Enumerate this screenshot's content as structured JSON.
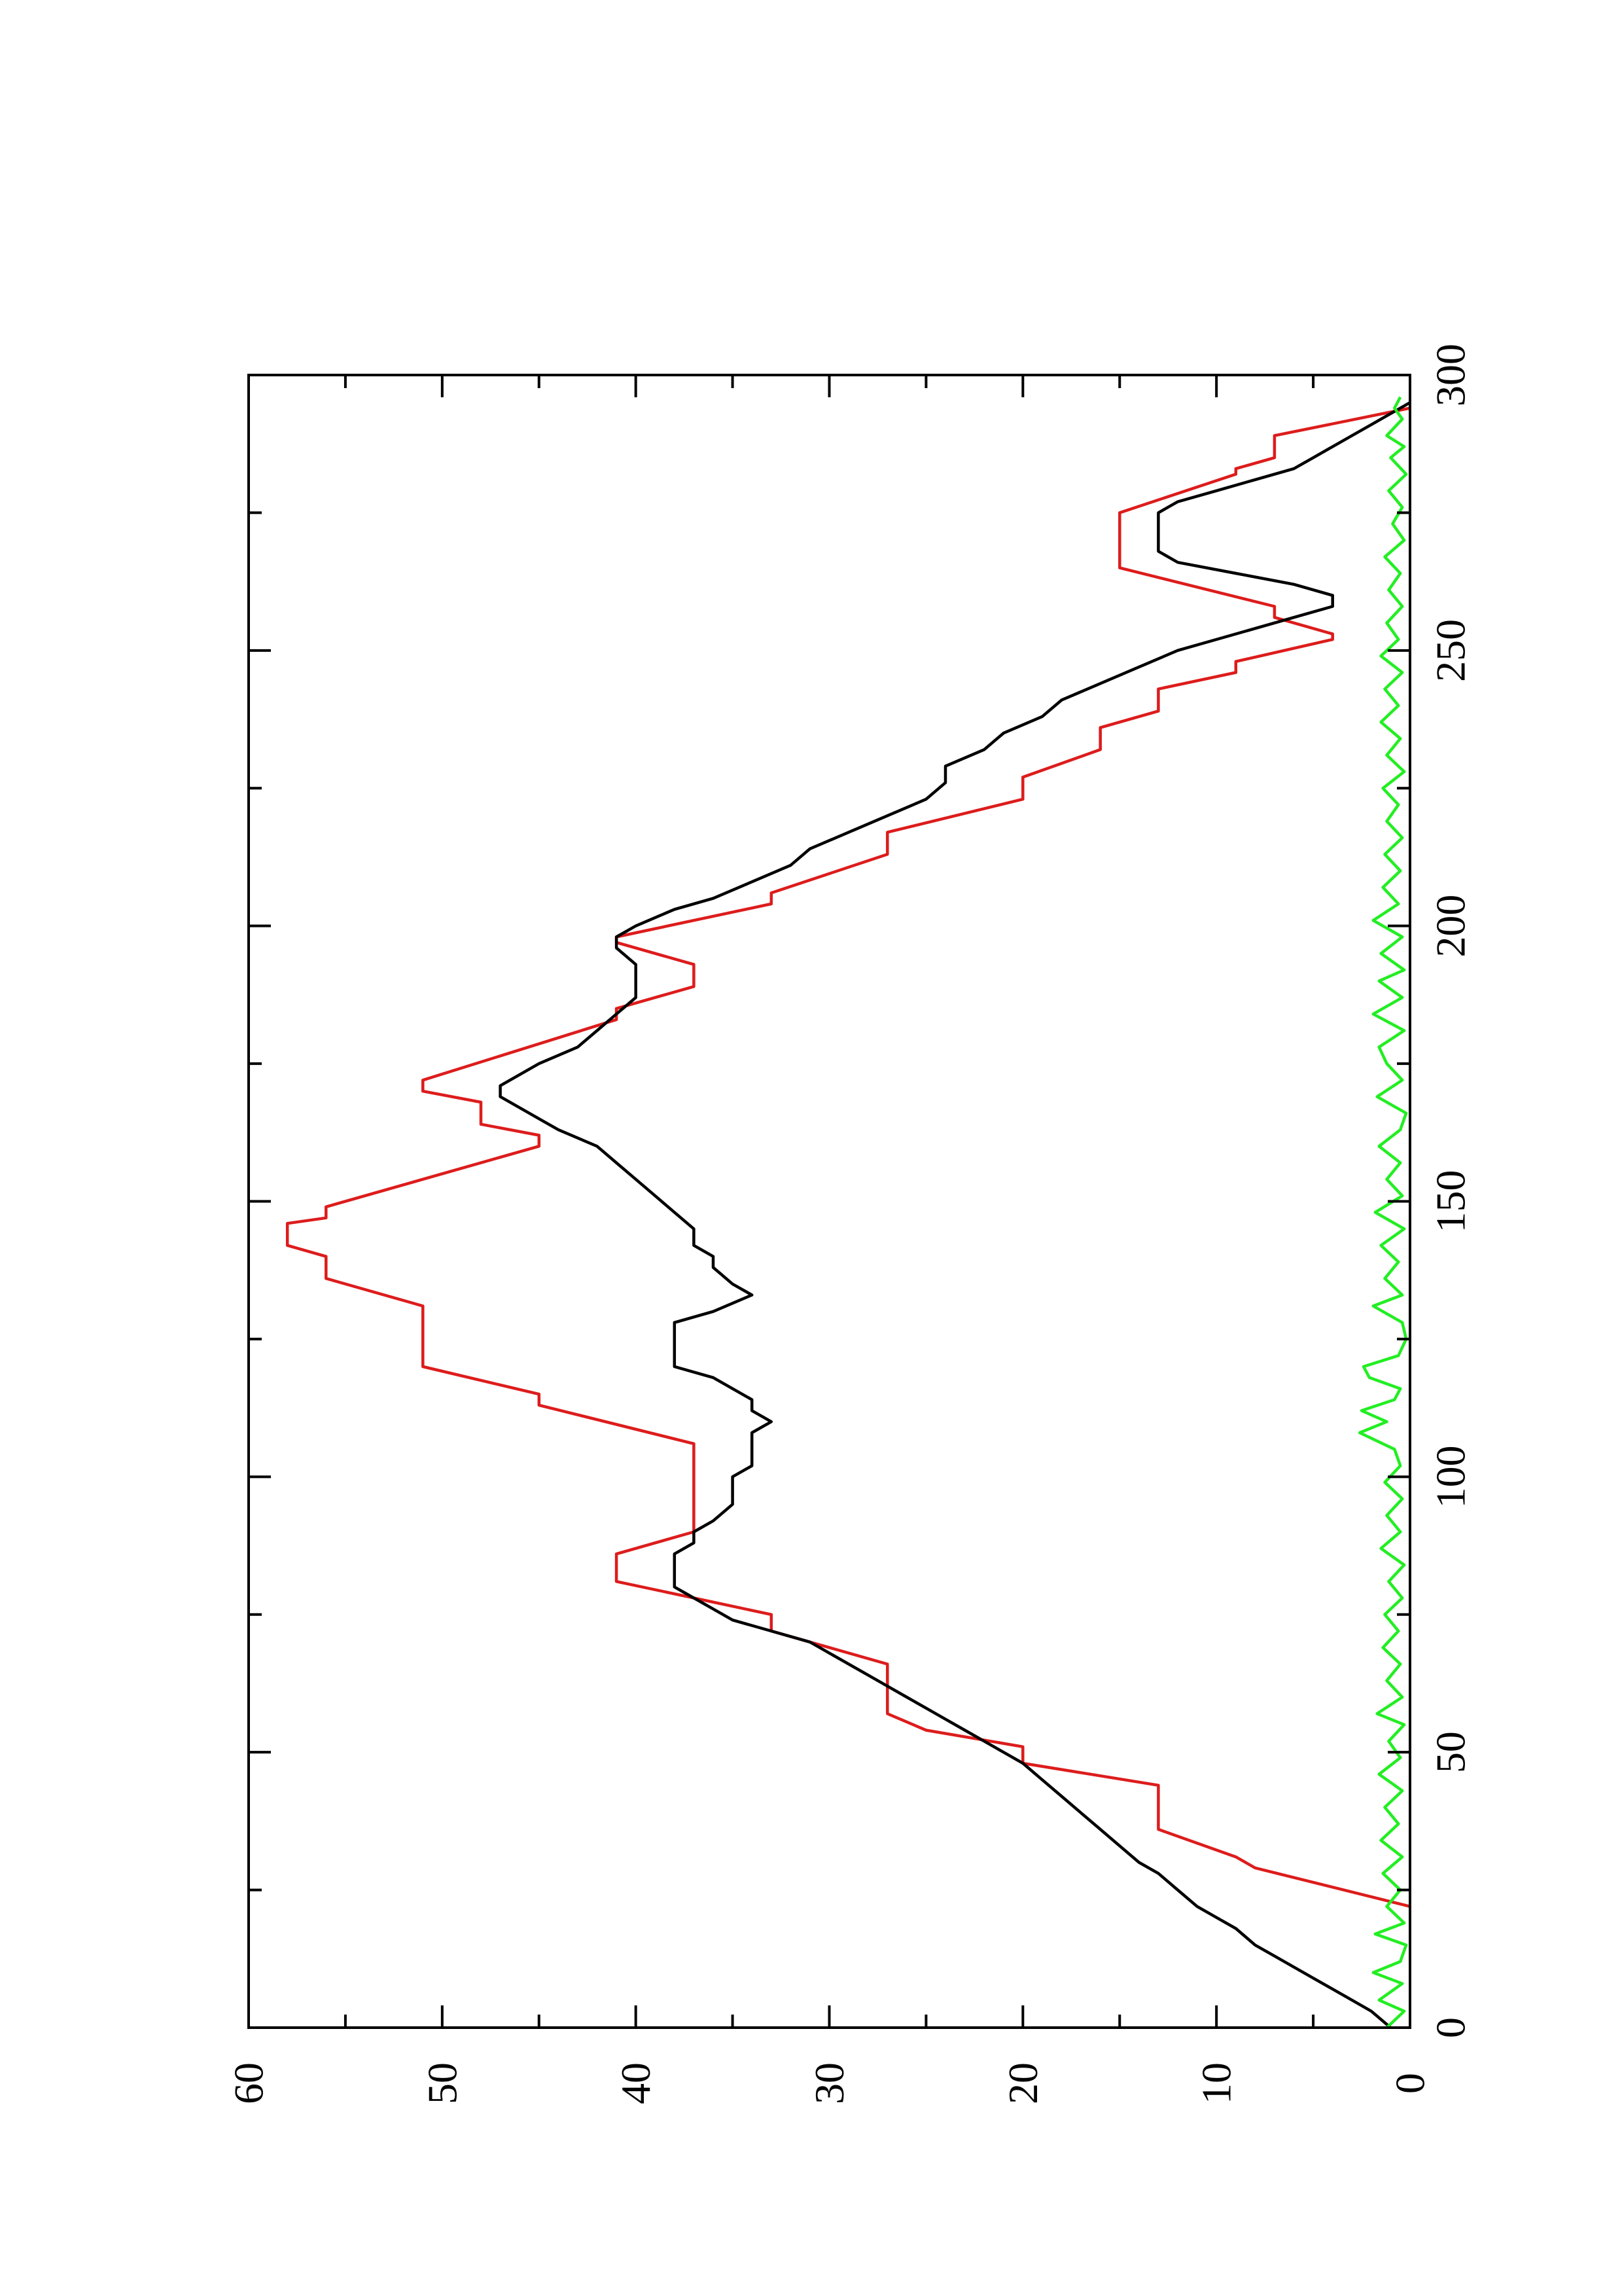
{
  "chart_data": {
    "type": "line",
    "title": "",
    "xlabel": "",
    "ylabel": "",
    "orientation": "rotated-90-counterclockwise",
    "grid": false,
    "legend": "none",
    "xlim": [
      0,
      300
    ],
    "ylim": [
      0,
      60
    ],
    "x_ticks": [
      "0",
      "50",
      "100",
      "150",
      "200",
      "250",
      "300"
    ],
    "y_ticks": [
      "0",
      "10",
      "20",
      "30",
      "40",
      "50",
      "60"
    ],
    "x_minor_ticks": [
      25,
      75,
      125,
      175,
      225,
      275
    ],
    "y_minor_ticks": [
      5,
      15,
      25,
      35,
      45,
      55
    ],
    "series": [
      {
        "color": "#dd1c1c",
        "style": "step",
        "points": [
          [
            22,
            0
          ],
          [
            29,
            8
          ],
          [
            31,
            9
          ],
          [
            36,
            13
          ],
          [
            44,
            13
          ],
          [
            48,
            20
          ],
          [
            51,
            20
          ],
          [
            54,
            25
          ],
          [
            57,
            27
          ],
          [
            66,
            27
          ],
          [
            72,
            33
          ],
          [
            75,
            33
          ],
          [
            78,
            37
          ],
          [
            81,
            41
          ],
          [
            86,
            41
          ],
          [
            90,
            37
          ],
          [
            106,
            37
          ],
          [
            113,
            45
          ],
          [
            115,
            45
          ],
          [
            120,
            51
          ],
          [
            131,
            51
          ],
          [
            136,
            56
          ],
          [
            140,
            56
          ],
          [
            142,
            58
          ],
          [
            146,
            58
          ],
          [
            147,
            56
          ],
          [
            149,
            56
          ],
          [
            160,
            45
          ],
          [
            162,
            45
          ],
          [
            164,
            48
          ],
          [
            168,
            48
          ],
          [
            170,
            51
          ],
          [
            172,
            51
          ],
          [
            183,
            41
          ],
          [
            185,
            41
          ],
          [
            189,
            37
          ],
          [
            193,
            37
          ],
          [
            197,
            41
          ],
          [
            198,
            41
          ],
          [
            204,
            33
          ],
          [
            206,
            33
          ],
          [
            213,
            27
          ],
          [
            217,
            27
          ],
          [
            223,
            20
          ],
          [
            227,
            20
          ],
          [
            232,
            16
          ],
          [
            236,
            16
          ],
          [
            239,
            13
          ],
          [
            243,
            13
          ],
          [
            246,
            9
          ],
          [
            248,
            9
          ],
          [
            252,
            4
          ],
          [
            253,
            4
          ],
          [
            256,
            7
          ],
          [
            258,
            7
          ],
          [
            265,
            15
          ],
          [
            275,
            15
          ],
          [
            282,
            9
          ],
          [
            283,
            9
          ],
          [
            285,
            7
          ],
          [
            289,
            7
          ],
          [
            294,
            0
          ]
        ]
      },
      {
        "color": "#000000",
        "style": "line",
        "points": [
          [
            0,
            1
          ],
          [
            3,
            2
          ],
          [
            5,
            3
          ],
          [
            7,
            4
          ],
          [
            9,
            5
          ],
          [
            11,
            6
          ],
          [
            13,
            7
          ],
          [
            15,
            8
          ],
          [
            18,
            9
          ],
          [
            20,
            10
          ],
          [
            22,
            11
          ],
          [
            25,
            12
          ],
          [
            28,
            13
          ],
          [
            30,
            14
          ],
          [
            33,
            15
          ],
          [
            36,
            16
          ],
          [
            39,
            17
          ],
          [
            42,
            18
          ],
          [
            45,
            19
          ],
          [
            48,
            20
          ],
          [
            50,
            21
          ],
          [
            52,
            22
          ],
          [
            54,
            23
          ],
          [
            56,
            24
          ],
          [
            58,
            25
          ],
          [
            60,
            26
          ],
          [
            62,
            27
          ],
          [
            64,
            28
          ],
          [
            66,
            29
          ],
          [
            68,
            30
          ],
          [
            70,
            31
          ],
          [
            72,
            33
          ],
          [
            74,
            35
          ],
          [
            76,
            36
          ],
          [
            78,
            37
          ],
          [
            80,
            38
          ],
          [
            82,
            38
          ],
          [
            84,
            38
          ],
          [
            86,
            38
          ],
          [
            88,
            37
          ],
          [
            90,
            37
          ],
          [
            92,
            36
          ],
          [
            95,
            35
          ],
          [
            98,
            35
          ],
          [
            100,
            35
          ],
          [
            102,
            34
          ],
          [
            105,
            34
          ],
          [
            108,
            34
          ],
          [
            110,
            33
          ],
          [
            112,
            34
          ],
          [
            114,
            34
          ],
          [
            116,
            35
          ],
          [
            118,
            36
          ],
          [
            120,
            38
          ],
          [
            124,
            38
          ],
          [
            128,
            38
          ],
          [
            130,
            36
          ],
          [
            133,
            34
          ],
          [
            135,
            35
          ],
          [
            138,
            36
          ],
          [
            140,
            36
          ],
          [
            142,
            37
          ],
          [
            145,
            37
          ],
          [
            148,
            38
          ],
          [
            151,
            39
          ],
          [
            154,
            40
          ],
          [
            157,
            41
          ],
          [
            160,
            42
          ],
          [
            163,
            44
          ],
          [
            165,
            45
          ],
          [
            167,
            46
          ],
          [
            169,
            47
          ],
          [
            171,
            47
          ],
          [
            173,
            46
          ],
          [
            175,
            45
          ],
          [
            178,
            43
          ],
          [
            181,
            42
          ],
          [
            184,
            41
          ],
          [
            187,
            40
          ],
          [
            190,
            40
          ],
          [
            193,
            40
          ],
          [
            196,
            41
          ],
          [
            198,
            41
          ],
          [
            200,
            40
          ],
          [
            203,
            38
          ],
          [
            205,
            36
          ],
          [
            208,
            34
          ],
          [
            211,
            32
          ],
          [
            214,
            31
          ],
          [
            217,
            29
          ],
          [
            220,
            27
          ],
          [
            223,
            25
          ],
          [
            226,
            24
          ],
          [
            229,
            24
          ],
          [
            232,
            22
          ],
          [
            235,
            21
          ],
          [
            238,
            19
          ],
          [
            241,
            18
          ],
          [
            244,
            16
          ],
          [
            247,
            14
          ],
          [
            250,
            12
          ],
          [
            252,
            10
          ],
          [
            254,
            8
          ],
          [
            256,
            6
          ],
          [
            258,
            4
          ],
          [
            260,
            4
          ],
          [
            262,
            6
          ],
          [
            264,
            9
          ],
          [
            266,
            12
          ],
          [
            268,
            13
          ],
          [
            270,
            13
          ],
          [
            272,
            13
          ],
          [
            275,
            13
          ],
          [
            277,
            12
          ],
          [
            279,
            10
          ],
          [
            281,
            8
          ],
          [
            283,
            6
          ],
          [
            285,
            5
          ],
          [
            287,
            4
          ],
          [
            289,
            3
          ],
          [
            291,
            2
          ],
          [
            293,
            1
          ],
          [
            295,
            0
          ]
        ]
      },
      {
        "color": "#22ee22",
        "style": "line",
        "points": [
          [
            0,
            1.2
          ],
          [
            3,
            0.3
          ],
          [
            5,
            1.6
          ],
          [
            8,
            0.4
          ],
          [
            10,
            1.9
          ],
          [
            12,
            0.5
          ],
          [
            15,
            0.2
          ],
          [
            17,
            1.8
          ],
          [
            19,
            0.3
          ],
          [
            22,
            1.2
          ],
          [
            25,
            0.5
          ],
          [
            28,
            1.4
          ],
          [
            31,
            0.4
          ],
          [
            34,
            1.5
          ],
          [
            37,
            0.6
          ],
          [
            40,
            1.3
          ],
          [
            43,
            0.4
          ],
          [
            46,
            1.6
          ],
          [
            49,
            0.5
          ],
          [
            52,
            1.1
          ],
          [
            55,
            0.3
          ],
          [
            57,
            1.7
          ],
          [
            60,
            0.4
          ],
          [
            63,
            1.2
          ],
          [
            66,
            0.5
          ],
          [
            69,
            1.4
          ],
          [
            72,
            0.6
          ],
          [
            75,
            1.3
          ],
          [
            78,
            0.4
          ],
          [
            81,
            1.1
          ],
          [
            84,
            0.3
          ],
          [
            87,
            1.5
          ],
          [
            90,
            0.5
          ],
          [
            93,
            1.2
          ],
          [
            96,
            0.4
          ],
          [
            99,
            1.3
          ],
          [
            102,
            0.5
          ],
          [
            105,
            0.8
          ],
          [
            108,
            2.6
          ],
          [
            110,
            1.2
          ],
          [
            112,
            2.5
          ],
          [
            114,
            0.8
          ],
          [
            116,
            0.5
          ],
          [
            118,
            2.1
          ],
          [
            120,
            2.4
          ],
          [
            122,
            0.6
          ],
          [
            125,
            0.2
          ],
          [
            128,
            0.4
          ],
          [
            131,
            1.9
          ],
          [
            133,
            0.4
          ],
          [
            136,
            1.3
          ],
          [
            139,
            0.6
          ],
          [
            142,
            1.5
          ],
          [
            145,
            0.3
          ],
          [
            148,
            1.8
          ],
          [
            151,
            0.4
          ],
          [
            154,
            1.2
          ],
          [
            157,
            0.5
          ],
          [
            160,
            1.6
          ],
          [
            163,
            0.5
          ],
          [
            166,
            0.2
          ],
          [
            169,
            1.7
          ],
          [
            172,
            0.4
          ],
          [
            175,
            1.2
          ],
          [
            178,
            1.6
          ],
          [
            181,
            0.3
          ],
          [
            184,
            1.9
          ],
          [
            187,
            0.4
          ],
          [
            190,
            1.6
          ],
          [
            192,
            0.3
          ],
          [
            195,
            1.5
          ],
          [
            198,
            0.4
          ],
          [
            201,
            1.9
          ],
          [
            204,
            0.6
          ],
          [
            207,
            1.4
          ],
          [
            210,
            0.5
          ],
          [
            213,
            1.3
          ],
          [
            216,
            0.4
          ],
          [
            219,
            1.2
          ],
          [
            222,
            0.6
          ],
          [
            225,
            1.4
          ],
          [
            228,
            0.3
          ],
          [
            231,
            1.2
          ],
          [
            234,
            0.5
          ],
          [
            237,
            1.5
          ],
          [
            240,
            0.6
          ],
          [
            243,
            1.3
          ],
          [
            246,
            0.4
          ],
          [
            249,
            1.5
          ],
          [
            252,
            0.6
          ],
          [
            255,
            1.2
          ],
          [
            258,
            0.4
          ],
          [
            261,
            1.1
          ],
          [
            264,
            0.5
          ],
          [
            267,
            1.3
          ],
          [
            270,
            0.3
          ],
          [
            273,
            0.9
          ],
          [
            276,
            0.4
          ],
          [
            279,
            1.1
          ],
          [
            282,
            0.2
          ],
          [
            285,
            1.0
          ],
          [
            287,
            0.3
          ],
          [
            289,
            1.2
          ],
          [
            292,
            0.4
          ],
          [
            294,
            0.8
          ],
          [
            296,
            0.5
          ]
        ]
      }
    ]
  }
}
